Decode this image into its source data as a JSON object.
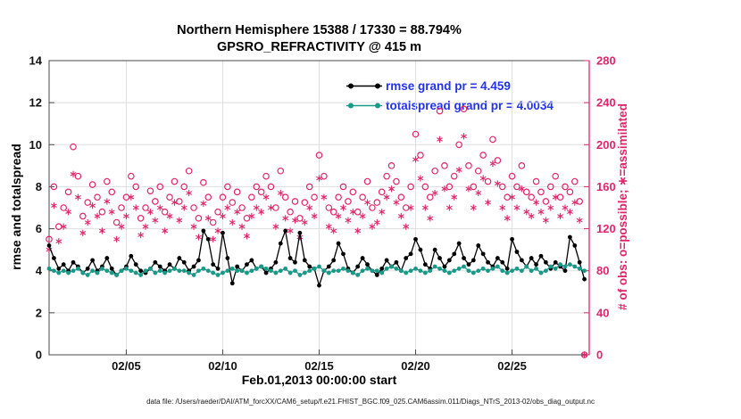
{
  "title_line1": "Northern Hemisphere 15388 / 17330 = 88.794%",
  "title_line2": "GPSRO_REFRACTIVITY @ 415 m",
  "legend": {
    "rmse": "rmse grand pr = 4.459",
    "totalspread": "totalspread grand pr = 4.0034"
  },
  "axes": {
    "left_label": "rmse and totalspread",
    "right_label": "# of obs: o=possible; ∗=assimilated",
    "x_label": "Feb.01,2013 00:00:00 start"
  },
  "caption": "data file: /Users/raeder/DAI/ATM_forcXX/CAM6_setup/f.e21.FHIST_BGC.f09_025.CAM6assim.011/Diags_NTrS_2013-02/obs_diag_output.nc",
  "colors": {
    "obs": "#E0256B",
    "rmse": "#000000",
    "totalspread": "#1A9988",
    "legend_text": "#2233EE",
    "grid": "#DEDEDE",
    "axis": "#4a4a4a"
  },
  "chart_data": {
    "type": "line+scatter",
    "title": "Northern Hemisphere 15388 / 17330 = 88.794% | GPSRO_REFRACTIVITY @ 415 m",
    "xlabel": "Feb.01,2013 00:00:00 start",
    "ylabel_left": "rmse and totalspread",
    "ylabel_right": "# of obs: o=possible; ∗=assimilated",
    "ylim_left": [
      0,
      14
    ],
    "ylim_right": [
      0,
      280
    ],
    "x_range_days": [
      0,
      28
    ],
    "x_start_day": 0,
    "x_step_days": 0.25,
    "grid": true,
    "legend_position": "top-center-inside",
    "yticks_left": [
      0,
      2,
      4,
      6,
      8,
      10,
      12,
      14
    ],
    "yticks_right": [
      0,
      40,
      80,
      120,
      160,
      200,
      240,
      280
    ],
    "x_ticks": [
      {
        "day": 4,
        "label": "02/05"
      },
      {
        "day": 9,
        "label": "02/10"
      },
      {
        "day": 14,
        "label": "02/15"
      },
      {
        "day": 19,
        "label": "02/20"
      },
      {
        "day": 24,
        "label": "02/25"
      }
    ],
    "series": [
      {
        "name": "possible",
        "marker": "o",
        "axis": "right",
        "style": "open-circle",
        "color": "#E0256B",
        "values": [
          110,
          160,
          122,
          140,
          155,
          198,
          170,
          132,
          145,
          162,
          150,
          136,
          165,
          155,
          126,
          140,
          150,
          170,
          160,
          130,
          140,
          156,
          146,
          160,
          136,
          150,
          165,
          146,
          160,
          175,
          140,
          130,
          164,
          150,
          126,
          136,
          150,
          160,
          145,
          155,
          140,
          130,
          150,
          160,
          155,
          170,
          160,
          140,
          175,
          150,
          136,
          146,
          130,
          145,
          160,
          150,
          190,
          170,
          140,
          136,
          150,
          160,
          146,
          155,
          136,
          150,
          165,
          140,
          145,
          155,
          170,
          180,
          165,
          150,
          140,
          160,
          210,
          190,
          160,
          150,
          175,
          232,
          180,
          160,
          170,
          200,
          234,
          180,
          160,
          175,
          190,
          165,
          205,
          185,
          160,
          150,
          170,
          160,
          180,
          155,
          150,
          165,
          155,
          146,
          160,
          170,
          150,
          160,
          155,
          165,
          146,
          0
        ]
      },
      {
        "name": "assimilated",
        "marker": "*",
        "axis": "right",
        "style": "asterisk",
        "color": "#E0256B",
        "values": [
          100,
          142,
          108,
          122,
          136,
          172,
          150,
          116,
          126,
          142,
          132,
          118,
          146,
          136,
          110,
          122,
          132,
          150,
          140,
          114,
          122,
          136,
          128,
          140,
          118,
          132,
          145,
          128,
          140,
          154,
          122,
          112,
          144,
          130,
          110,
          118,
          132,
          140,
          126,
          136,
          122,
          113,
          132,
          140,
          136,
          150,
          140,
          122,
          154,
          130,
          118,
          128,
          112,
          126,
          140,
          132,
          168,
          150,
          122,
          118,
          132,
          140,
          128,
          136,
          118,
          132,
          145,
          122,
          126,
          136,
          150,
          158,
          145,
          132,
          122,
          140,
          186,
          168,
          140,
          130,
          154,
          205,
          158,
          140,
          150,
          176,
          208,
          158,
          140,
          154,
          168,
          145,
          182,
          163,
          140,
          130,
          150,
          140,
          158,
          136,
          132,
          145,
          136,
          128,
          140,
          150,
          132,
          140,
          136,
          145,
          128,
          0
        ]
      },
      {
        "name": "rmse",
        "axis": "left",
        "style": "line-dot",
        "color": "#000000",
        "values": [
          5.2,
          4.6,
          4.1,
          4.3,
          4.0,
          4.4,
          4.2,
          3.9,
          4.1,
          4.5,
          4.0,
          4.2,
          4.6,
          4.1,
          3.8,
          4.0,
          4.2,
          4.7,
          4.3,
          4.0,
          3.9,
          4.1,
          4.4,
          4.2,
          4.0,
          4.3,
          4.1,
          4.6,
          4.4,
          4.0,
          4.2,
          4.5,
          5.9,
          5.5,
          4.3,
          4.1,
          5.8,
          4.6,
          3.4,
          4.2,
          4.0,
          4.3,
          4.5,
          4.1,
          4.2,
          3.9,
          4.1,
          4.4,
          5.3,
          5.9,
          4.6,
          4.4,
          5.8,
          4.5,
          4.2,
          4.1,
          3.3,
          4.0,
          4.2,
          4.5,
          5.3,
          4.8,
          4.1,
          3.9,
          4.2,
          4.6,
          4.3,
          4.0,
          3.8,
          4.1,
          4.5,
          4.2,
          4.4,
          4.0,
          4.6,
          4.8,
          5.5,
          5.0,
          4.3,
          4.1,
          5.0,
          4.6,
          4.2,
          4.5,
          4.8,
          5.3,
          4.6,
          4.3,
          4.5,
          5.2,
          4.8,
          4.4,
          4.2,
          4.6,
          4.4,
          4.1,
          5.5,
          4.9,
          4.5,
          4.2,
          4.6,
          4.3,
          4.7,
          4.4,
          4.1,
          4.4,
          4.2,
          4.0,
          5.6,
          5.2,
          4.4,
          3.6
        ]
      },
      {
        "name": "totalspread",
        "axis": "left",
        "style": "line-dot",
        "color": "#1A9988",
        "values": [
          4.1,
          4.0,
          3.9,
          4.0,
          3.9,
          4.0,
          4.1,
          3.9,
          3.8,
          4.0,
          3.9,
          4.1,
          4.0,
          3.9,
          3.8,
          4.0,
          4.1,
          4.0,
          3.9,
          3.8,
          4.0,
          4.1,
          3.9,
          4.0,
          3.9,
          4.0,
          4.1,
          4.0,
          4.0,
          3.9,
          3.8,
          4.0,
          4.1,
          4.0,
          3.9,
          3.8,
          3.9,
          4.0,
          4.1,
          4.0,
          4.0,
          3.9,
          4.0,
          4.1,
          4.2,
          4.1,
          4.0,
          3.9,
          4.0,
          4.1,
          3.9,
          4.0,
          3.8,
          3.9,
          4.0,
          4.1,
          4.2,
          4.0,
          3.9,
          4.0,
          4.0,
          4.1,
          4.0,
          3.9,
          3.8,
          4.0,
          4.1,
          4.0,
          4.0,
          3.9,
          4.1,
          4.2,
          4.1,
          4.0,
          3.9,
          4.0,
          4.1,
          4.0,
          3.9,
          4.0,
          4.2,
          4.1,
          4.0,
          3.9,
          4.0,
          4.1,
          4.2,
          4.0,
          3.9,
          4.0,
          4.1,
          4.0,
          4.1,
          4.2,
          4.0,
          3.9,
          4.0,
          4.1,
          4.0,
          4.2,
          4.0,
          4.1,
          3.9,
          4.0,
          4.2,
          4.1,
          4.3,
          4.2,
          4.3,
          4.2,
          4.1,
          4.0
        ]
      }
    ]
  }
}
